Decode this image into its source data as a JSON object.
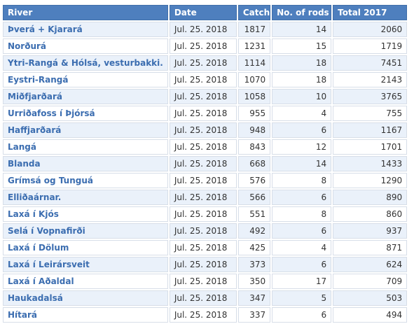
{
  "columns": [
    "River",
    "Date",
    "Catch",
    "No. of rods",
    "Total 2017"
  ],
  "rows": [
    {
      "river": "Þverá + Kjarará",
      "date": "Jul. 25. 2018",
      "catch": "1817",
      "rods": "14",
      "total_2017": "2060"
    },
    {
      "river": "Norðurá",
      "date": "Jul. 25. 2018",
      "catch": "1231",
      "rods": "15",
      "total_2017": "1719"
    },
    {
      "river": "Ytri-Rangá & Hólsá, vesturbakki.",
      "date": "Jul. 25. 2018",
      "catch": "1114",
      "rods": "18",
      "total_2017": "7451"
    },
    {
      "river": "Eystri-Rangá",
      "date": "Jul. 25. 2018",
      "catch": "1070",
      "rods": "18",
      "total_2017": "2143"
    },
    {
      "river": "Miðfjarðará",
      "date": "Jul. 25. 2018",
      "catch": "1058",
      "rods": "10",
      "total_2017": "3765"
    },
    {
      "river": "Urriðafoss í Þjórsá",
      "date": "Jul. 25. 2018",
      "catch": "955",
      "rods": "4",
      "total_2017": "755"
    },
    {
      "river": "Haffjarðará",
      "date": "Jul. 25. 2018",
      "catch": "948",
      "rods": "6",
      "total_2017": "1167"
    },
    {
      "river": "Langá",
      "date": "Jul. 25. 2018",
      "catch": "843",
      "rods": "12",
      "total_2017": "1701"
    },
    {
      "river": "Blanda",
      "date": "Jul. 25. 2018",
      "catch": "668",
      "rods": "14",
      "total_2017": "1433"
    },
    {
      "river": "Grímsá og Tunguá",
      "date": "Jul. 25. 2018",
      "catch": "576",
      "rods": "8",
      "total_2017": "1290"
    },
    {
      "river": "Elliðaárnar.",
      "date": "Jul. 25. 2018",
      "catch": "566",
      "rods": "6",
      "total_2017": "890"
    },
    {
      "river": "Laxá í Kjós",
      "date": "Jul. 25. 2018",
      "catch": "551",
      "rods": "8",
      "total_2017": "860"
    },
    {
      "river": "Selá í Vopnafirði",
      "date": "Jul. 25. 2018",
      "catch": "492",
      "rods": "6",
      "total_2017": "937"
    },
    {
      "river": "Laxá í Dölum",
      "date": "Jul. 25. 2018",
      "catch": "425",
      "rods": "4",
      "total_2017": "871"
    },
    {
      "river": "Laxá í Leirársveit",
      "date": "Jul. 25. 2018",
      "catch": "373",
      "rods": "6",
      "total_2017": "624"
    },
    {
      "river": "Laxá í Aðaldal",
      "date": "Jul. 25. 2018",
      "catch": "350",
      "rods": "17",
      "total_2017": "709"
    },
    {
      "river": "Haukadalsá",
      "date": "Jul. 25. 2018",
      "catch": "347",
      "rods": "5",
      "total_2017": "503"
    },
    {
      "river": "Hítará",
      "date": "Jul. 25. 2018",
      "catch": "337",
      "rods": "6",
      "total_2017": "494"
    }
  ],
  "colors": {
    "header_bg": "#4e7fbe",
    "link": "#3b6db0",
    "stripe": "#eaf1fa"
  }
}
